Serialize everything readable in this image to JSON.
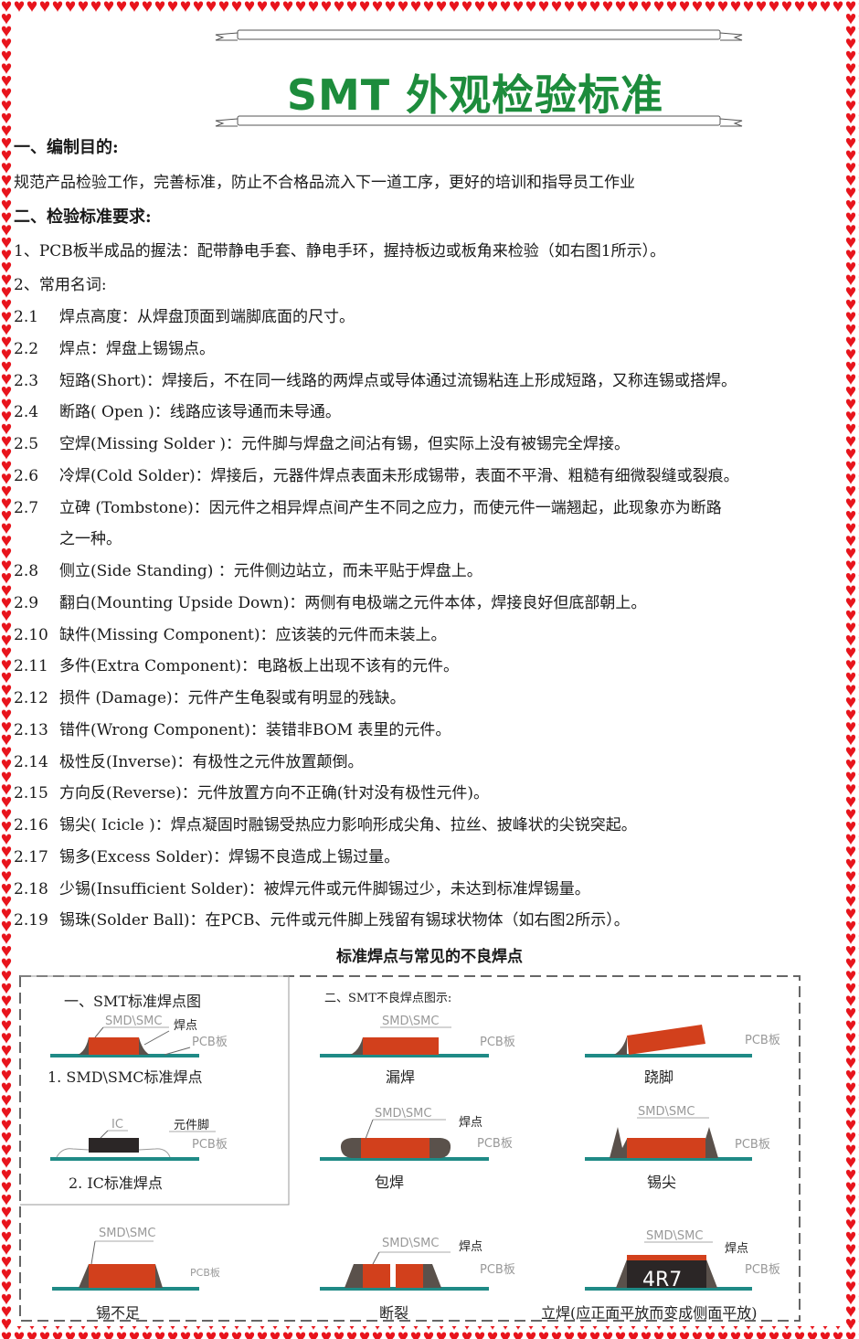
{
  "colors": {
    "border_hearts": "#e8141c",
    "title": "#1d8c3c",
    "pcb": "#1f8a86",
    "component": "#d2401c",
    "solder": "#5a514b",
    "ic": "#2b2626"
  },
  "title": "SMT 外观检验标准",
  "section1": {
    "heading": "一、编制目的:",
    "body": "规范产品检验工作，完善标准，防止不合格品流入下一道工序，更好的培训和指导员工作业"
  },
  "section2": {
    "heading": "二、检验标准要求:",
    "item1": "1、PCB板半成品的握法：配带静电手套、静电手环，握持板边或板角来检验（如右图1所示）。",
    "item2": "2、常用名词:",
    "terms": [
      {
        "num": "2.1",
        "text": "焊点高度：从焊盘顶面到端脚底面的尺寸。"
      },
      {
        "num": "2.2",
        "text": "焊点：焊盘上锡锡点。"
      },
      {
        "num": "2.3",
        "text": "短路(Short)：焊接后，不在同一线路的两焊点或导体通过流锡粘连上形成短路，又称连锡或搭焊。"
      },
      {
        "num": "2.4",
        "text": "断路( Open )：线路应该导通而未导通。"
      },
      {
        "num": "2.5",
        "text": "空焊(Missing Solder )：元件脚与焊盘之间沾有锡，但实际上没有被锡完全焊接。"
      },
      {
        "num": "2.6",
        "text": "冷焊(Cold Solder)：焊接后，元器件焊点表面未形成锡带，表面不平滑、粗糙有细微裂缝或裂痕。"
      },
      {
        "num": "2.7",
        "text": "立碑 (Tombstone)：因元件之相异焊点间产生不同之应力，而使元件一端翘起，此现象亦为断路",
        "cont": "之一种。"
      },
      {
        "num": "2.8",
        "text": "侧立(Side Standing) ：元件侧边站立，而未平贴于焊盘上。"
      },
      {
        "num": "2.9",
        "text": "翻白(Mounting Upside Down)：两侧有电极端之元件本体，焊接良好但底部朝上。"
      },
      {
        "num": "2.10",
        "text": "缺件(Missing Component)：应该装的元件而未装上。"
      },
      {
        "num": "2.11",
        "text": "多件(Extra Component)：电路板上出现不该有的元件。"
      },
      {
        "num": "2.12",
        "text": "损件 (Damage)：元件产生龟裂或有明显的残缺。"
      },
      {
        "num": "2.13",
        "text": "错件(Wrong Component)：装错非BOM 表里的元件。"
      },
      {
        "num": "2.14",
        "text": "极性反(Inverse)：有极性之元件放置颠倒。"
      },
      {
        "num": "2.15",
        "text": "方向反(Reverse)：元件放置方向不正确(针对没有极性元件)。"
      },
      {
        "num": "2.16",
        "text": "锡尖( Icicle )：焊点凝固时融锡受热应力影响形成尖角、拉丝、披峰状的尖锐突起。"
      },
      {
        "num": "2.17",
        "text": "锡多(Excess Solder)：焊锡不良造成上锡过量。"
      },
      {
        "num": "2.18",
        "text": "少锡(Insufficient Solder)：被焊元件或元件脚锡过少，未达到标准焊锡量。"
      },
      {
        "num": "2.19",
        "text": "锡珠(Solder Ball)：在PCB、元件或元件脚上残留有锡球状物体（如右图2所示）。"
      }
    ]
  },
  "figure": {
    "caption": "标准焊点与常见的不良焊点",
    "left_title": "一、SMT标准焊点图",
    "right_title": "二、SMT不良焊点图示:",
    "labels": {
      "smd": "SMD\\SMC",
      "joint": "焊点",
      "pcb": "PCB板",
      "ic": "IC",
      "pin": "元件脚",
      "chip_marking": "4R7"
    },
    "panels": {
      "standard": "1. SMD\\SMC标准焊点",
      "ic_standard": "2. IC标准焊点",
      "missing": "漏焊",
      "lifted": "跷脚",
      "wrapped": "包焊",
      "icicle": "锡尖",
      "insufficient": "锡不足",
      "cracked": "断裂",
      "tombstone": "立焊(应正面平放而变成侧面平放)"
    }
  }
}
